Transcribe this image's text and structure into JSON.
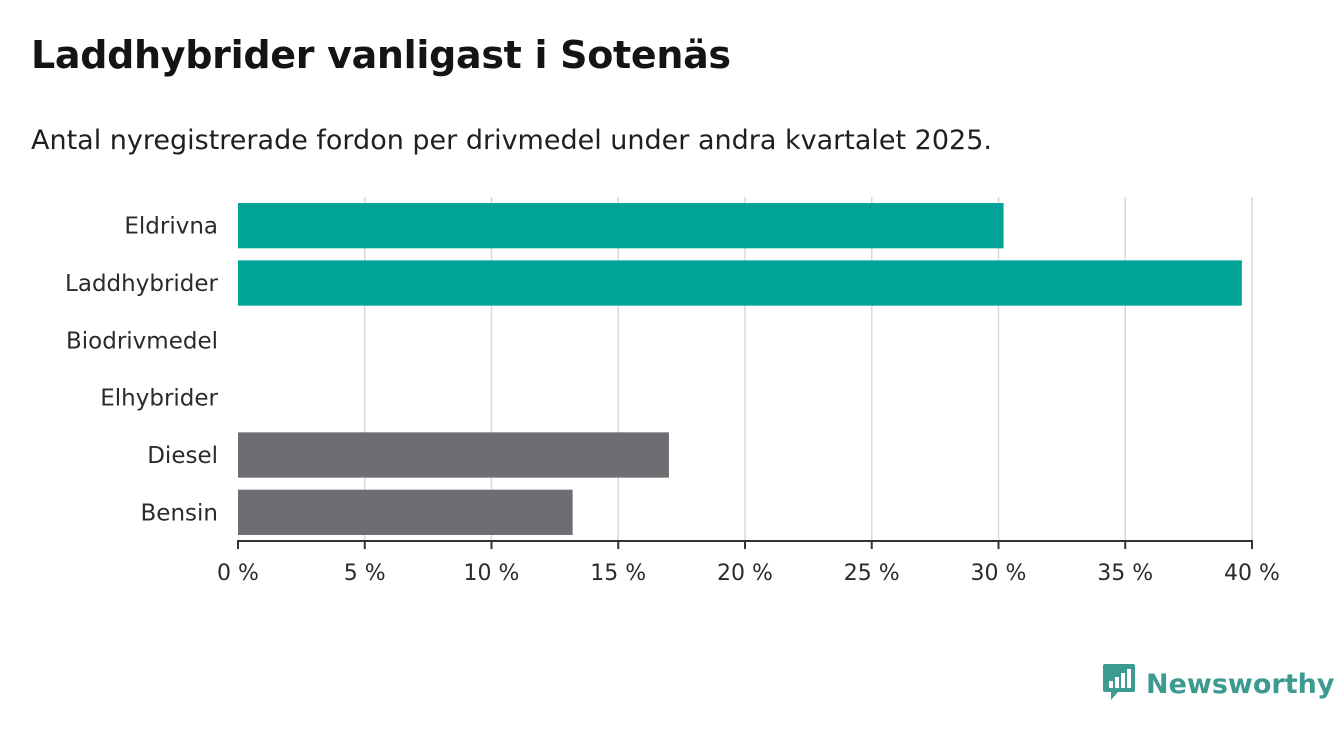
{
  "header": {
    "title": "Laddhybrider vanligast i Sotenäs",
    "subtitle": "Antal nyregistrerade fordon per drivmedel under andra kvartalet 2025."
  },
  "brand": {
    "name": "Newsworthy",
    "icon": "newsworthy-logo-icon",
    "color": "#3d9a91"
  },
  "colors": {
    "highlight": "#00a398",
    "other": "#6e6d72",
    "grid": "#d9d9d9",
    "axis": "#333333"
  },
  "chart_data": {
    "type": "bar",
    "orientation": "horizontal",
    "title": "Laddhybrider vanligast i Sotenäs",
    "subtitle": "Antal nyregistrerade fordon per drivmedel under andra kvartalet 2025.",
    "categories": [
      "Eldrivna",
      "Laddhybrider",
      "Biodrivmedel",
      "Elhybrider",
      "Diesel",
      "Bensin"
    ],
    "values": [
      30.2,
      39.6,
      0,
      0,
      17.0,
      13.2
    ],
    "bar_colors": [
      "#00a398",
      "#00a398",
      "#6e6d72",
      "#6e6d72",
      "#6e6d72",
      "#6e6d72"
    ],
    "xlim": [
      0,
      40
    ],
    "xticks": [
      0,
      5,
      10,
      15,
      20,
      25,
      30,
      35,
      40
    ],
    "xtick_labels": [
      "0 %",
      "5 %",
      "10 %",
      "15 %",
      "20 %",
      "25 %",
      "30 %",
      "35 %",
      "40 %"
    ],
    "grid": true
  }
}
